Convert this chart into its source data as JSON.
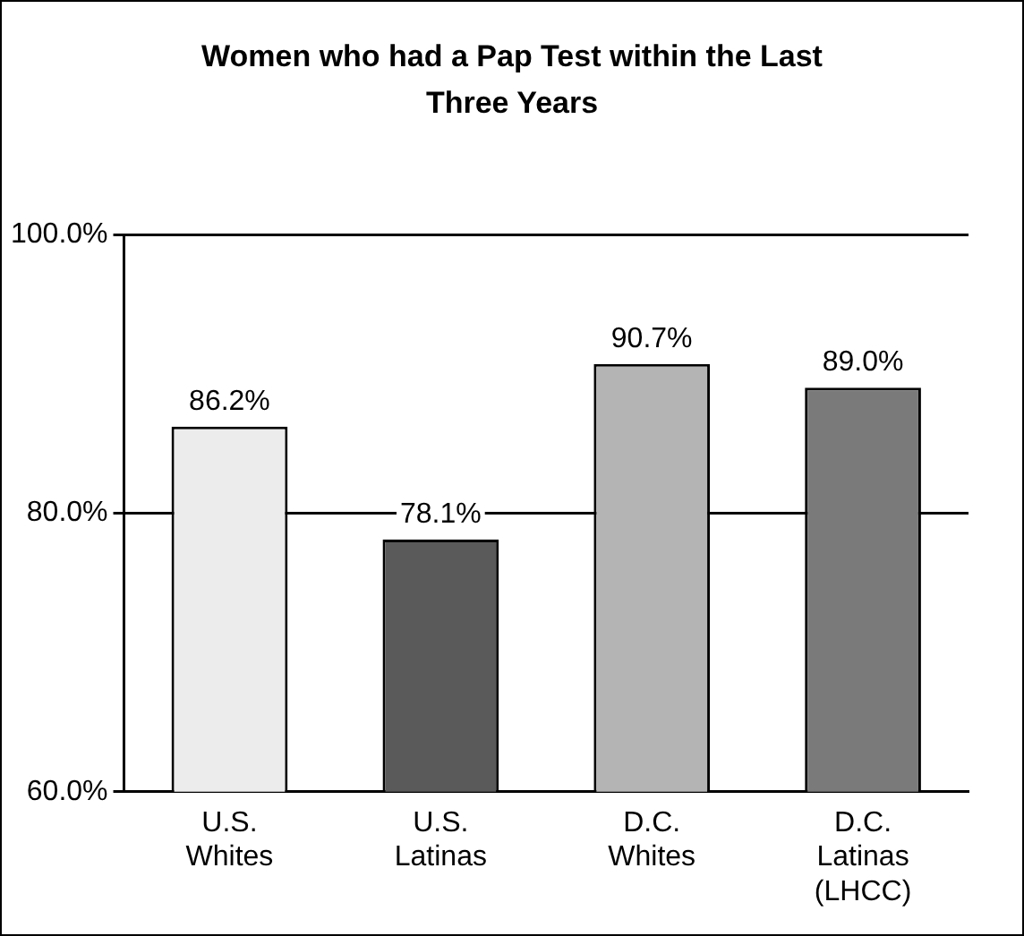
{
  "chart_data": {
    "type": "bar",
    "title": "Women who had a Pap Test within the Last Three Years",
    "categories": [
      "U.S. Whites",
      "U.S. Latinas",
      "D.C. Whites",
      "D.C. Latinas (LHCC)"
    ],
    "values": [
      86.2,
      78.1,
      90.7,
      89.0
    ],
    "colors": [
      "#ececec",
      "#5a5a5a",
      "#b4b4b4",
      "#7a7a7a"
    ],
    "value_labels": [
      "86.2%",
      "78.1%",
      "90.7%",
      "89.0%"
    ],
    "ylim": [
      60,
      100
    ],
    "yticks": [
      {
        "value": 60,
        "label": "60.0%"
      },
      {
        "value": 80,
        "label": "80.0%"
      },
      {
        "value": 100,
        "label": "100.0%"
      }
    ],
    "grid": "y",
    "legend": false
  }
}
